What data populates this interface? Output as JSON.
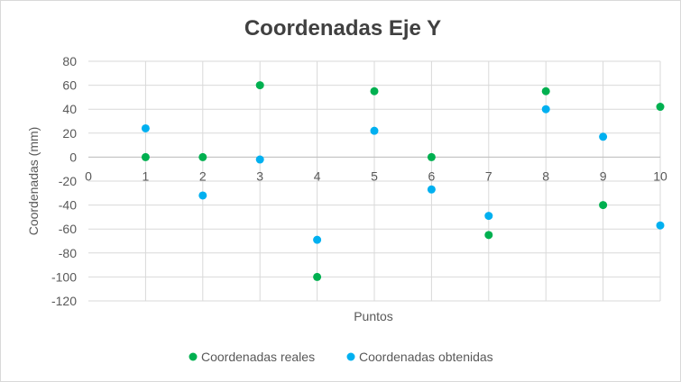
{
  "chart_data": {
    "type": "scatter",
    "title": "Coordenadas Eje Y",
    "xlabel": "Puntos",
    "ylabel": "Coordenadas (mm)",
    "xlim": [
      0,
      10
    ],
    "ylim": [
      -120,
      80
    ],
    "x_ticks": [
      0,
      1,
      2,
      3,
      4,
      5,
      6,
      7,
      8,
      9,
      10
    ],
    "y_ticks": [
      80,
      60,
      40,
      20,
      0,
      -20,
      -40,
      -60,
      -80,
      -100,
      -120
    ],
    "grid": "vertical and horizontal",
    "legend_position": "bottom",
    "series": [
      {
        "name": "Coordenadas reales",
        "color": "#00b050",
        "x": [
          1,
          2,
          3,
          4,
          5,
          6,
          7,
          8,
          9,
          10
        ],
        "y": [
          0,
          0,
          60,
          -100,
          55,
          0,
          -65,
          55,
          -40,
          42
        ]
      },
      {
        "name": "Coordenadas obtenidas",
        "color": "#00b0f0",
        "x": [
          1,
          2,
          3,
          4,
          5,
          6,
          7,
          8,
          9,
          10
        ],
        "y": [
          24,
          -32,
          -2,
          -69,
          22,
          -27,
          -49,
          40,
          17,
          -57
        ]
      }
    ]
  }
}
